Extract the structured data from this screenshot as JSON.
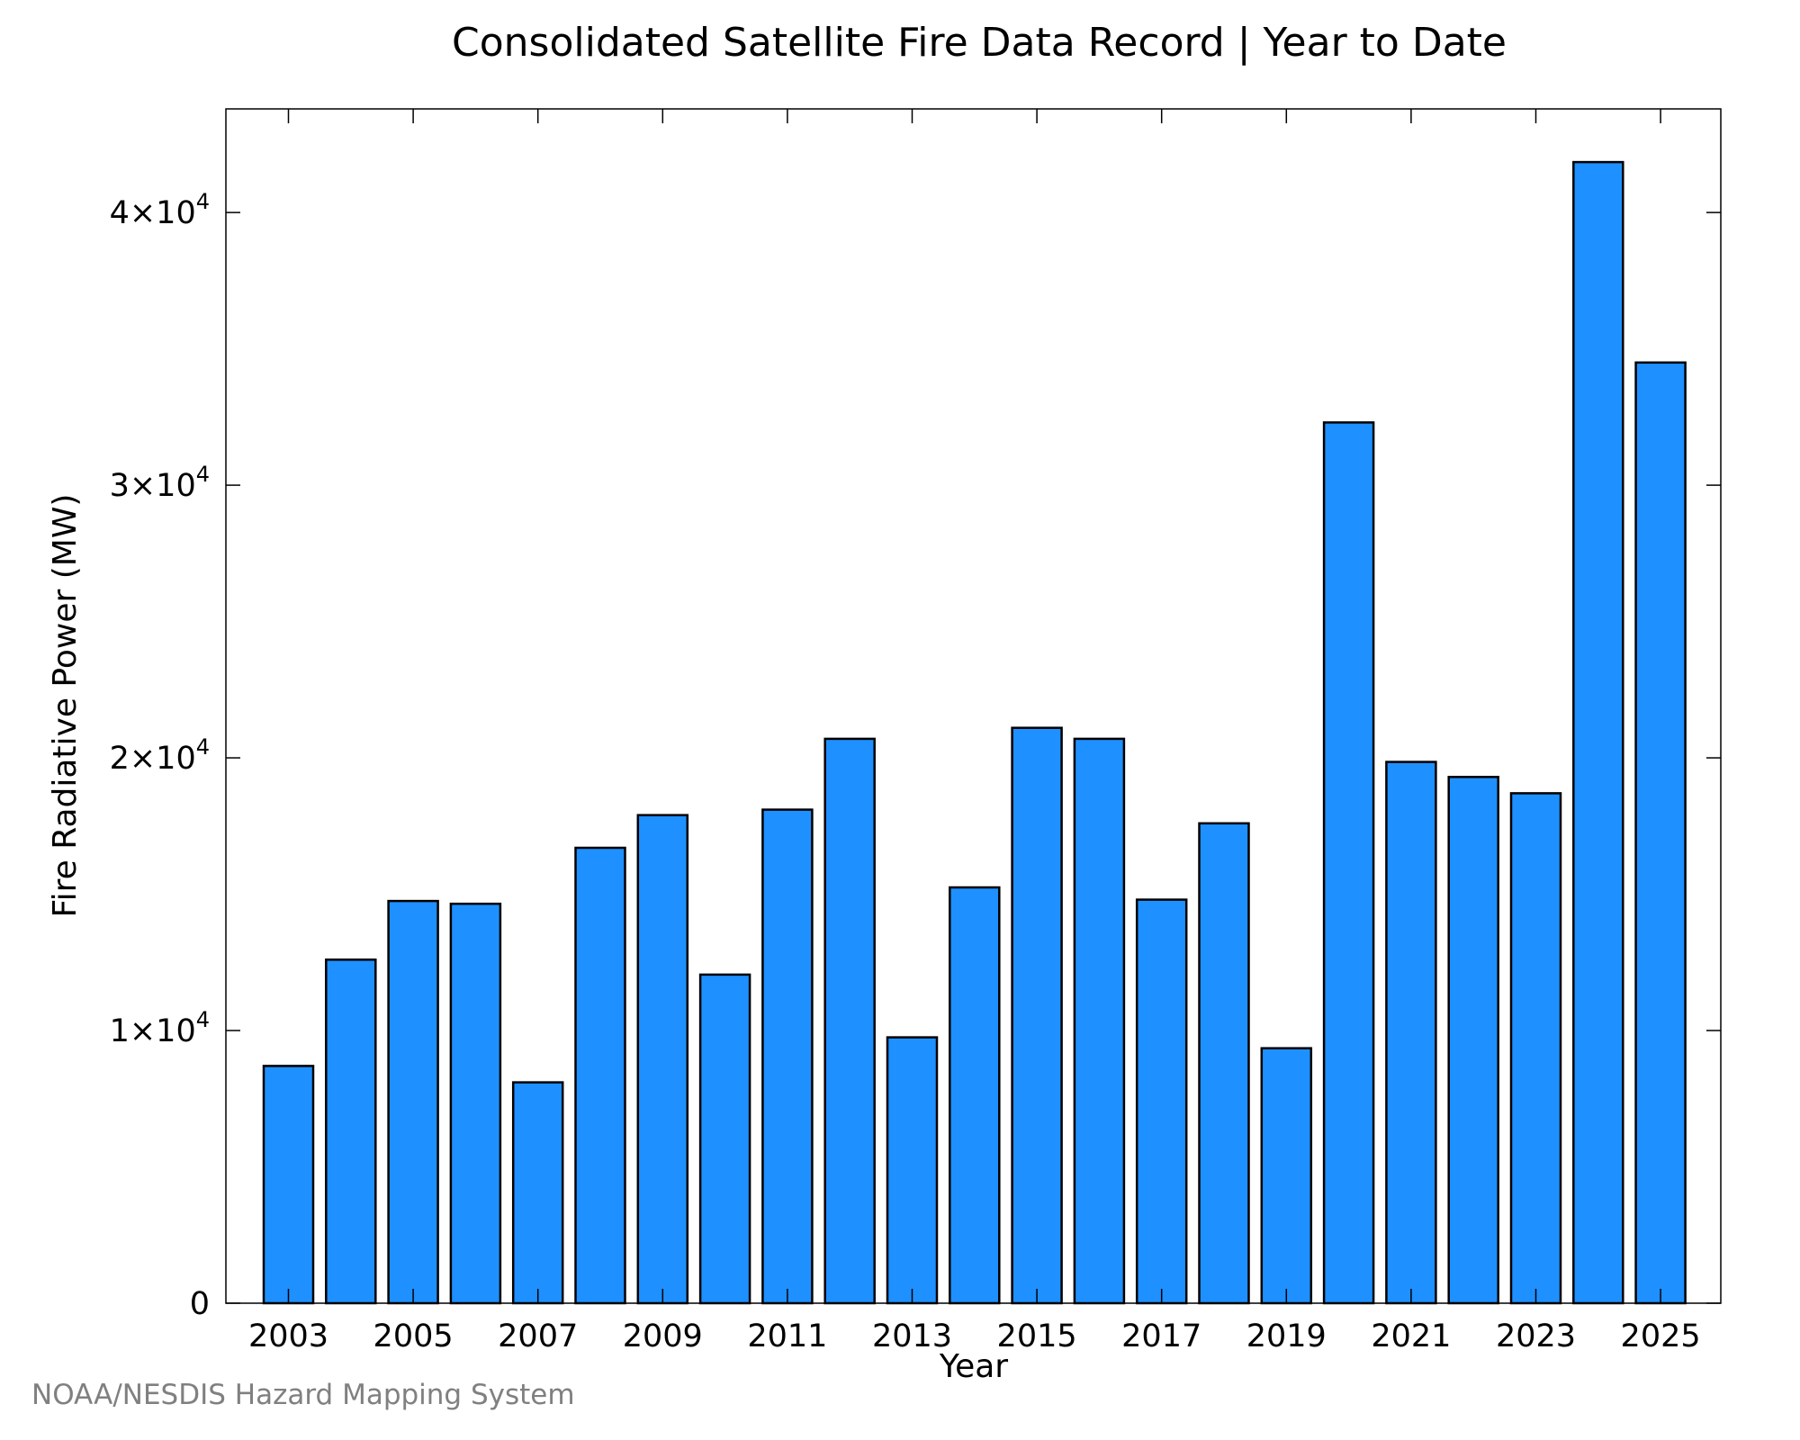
{
  "chart_data": {
    "type": "bar",
    "title": "Consolidated Satellite Fire Data Record | Year to Date",
    "xlabel": "Year",
    "ylabel": "Fire Radiative Power (MW)",
    "categories": [
      "2003",
      "2004",
      "2005",
      "2006",
      "2007",
      "2008",
      "2009",
      "2010",
      "2011",
      "2012",
      "2013",
      "2014",
      "2015",
      "2016",
      "2017",
      "2018",
      "2019",
      "2020",
      "2021",
      "2022",
      "2023",
      "2024",
      "2025"
    ],
    "values": [
      8700,
      12600,
      14750,
      14650,
      8100,
      16700,
      17900,
      12050,
      18100,
      20700,
      9750,
      15250,
      21100,
      20700,
      14800,
      17600,
      9350,
      32300,
      19850,
      19300,
      18700,
      41850,
      34500
    ],
    "ylim": [
      0,
      43800
    ],
    "x_tick_labels": [
      "2003",
      "2005",
      "2007",
      "2009",
      "2011",
      "2013",
      "2015",
      "2017",
      "2019",
      "2021",
      "2023",
      "2025"
    ],
    "y_ticks": [
      {
        "value": 0,
        "mantissa": "0",
        "exponent": ""
      },
      {
        "value": 10000,
        "mantissa": "1×10",
        "exponent": "4"
      },
      {
        "value": 20000,
        "mantissa": "2×10",
        "exponent": "4"
      },
      {
        "value": 30000,
        "mantissa": "3×10",
        "exponent": "4"
      },
      {
        "value": 40000,
        "mantissa": "4×10",
        "exponent": "4"
      }
    ],
    "bar_color": "#1e90ff",
    "bar_edge_color": "#000000",
    "grid": false,
    "legend": "none"
  },
  "source_credit": "NOAA/NESDIS Hazard Mapping System"
}
